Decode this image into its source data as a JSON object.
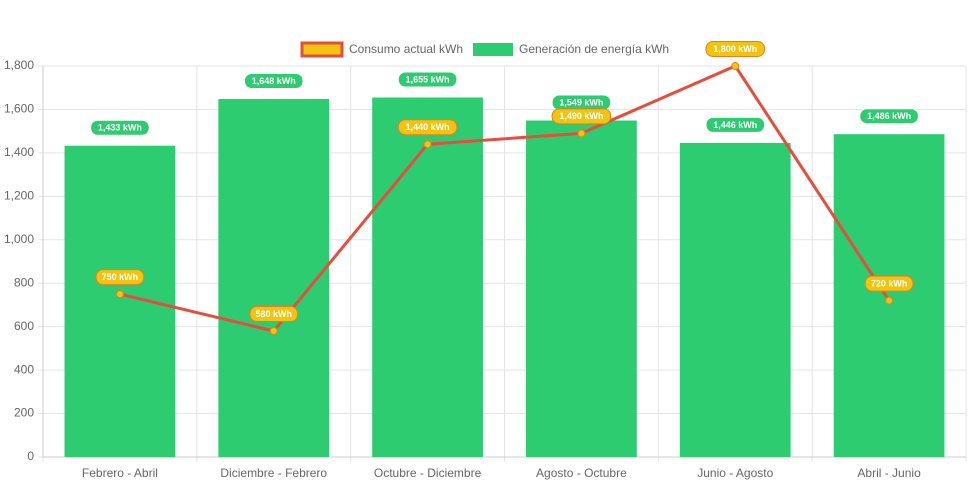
{
  "chart_data": {
    "type": "bar",
    "categories": [
      "Febrero - Abril",
      "Diciembre - Febrero",
      "Octubre - Diciembre",
      "Agosto - Octubre",
      "Junio - Agosto",
      "Abril - Junio"
    ],
    "series": [
      {
        "name": "Generación de energía kWh",
        "type": "bar",
        "color": "#2ecc71",
        "values": [
          1433,
          1648,
          1655,
          1549,
          1446,
          1486
        ],
        "data_labels": [
          "1,433 kWh",
          "1,648 kWh",
          "1,655 kWh",
          "1,549 kWh",
          "1,446 kWh",
          "1,486 kWh"
        ]
      },
      {
        "name": "Consumo actual kWh",
        "type": "line",
        "color": "#e74c3c",
        "point_fill": "#f1c40f",
        "label_fill": "#f1c40f",
        "label_border": "#e67e22",
        "values": [
          750,
          580,
          1440,
          1490,
          1800,
          720
        ],
        "data_labels": [
          "750 kWh",
          "580 kWh",
          "1,440 kWh",
          "1,490 kWh",
          "1,800 kWh",
          "720 kWh"
        ]
      }
    ],
    "ylim": [
      0,
      1800
    ],
    "yticks": [
      0,
      200,
      400,
      600,
      800,
      1000,
      1200,
      1400,
      1600,
      1800
    ],
    "ytick_labels": [
      "0",
      "200",
      "400",
      "600",
      "800",
      "1,000",
      "1,200",
      "1,400",
      "1,600",
      "1,800"
    ],
    "grid": true,
    "legend_position": "top",
    "title": "",
    "xlabel": "",
    "ylabel": ""
  }
}
